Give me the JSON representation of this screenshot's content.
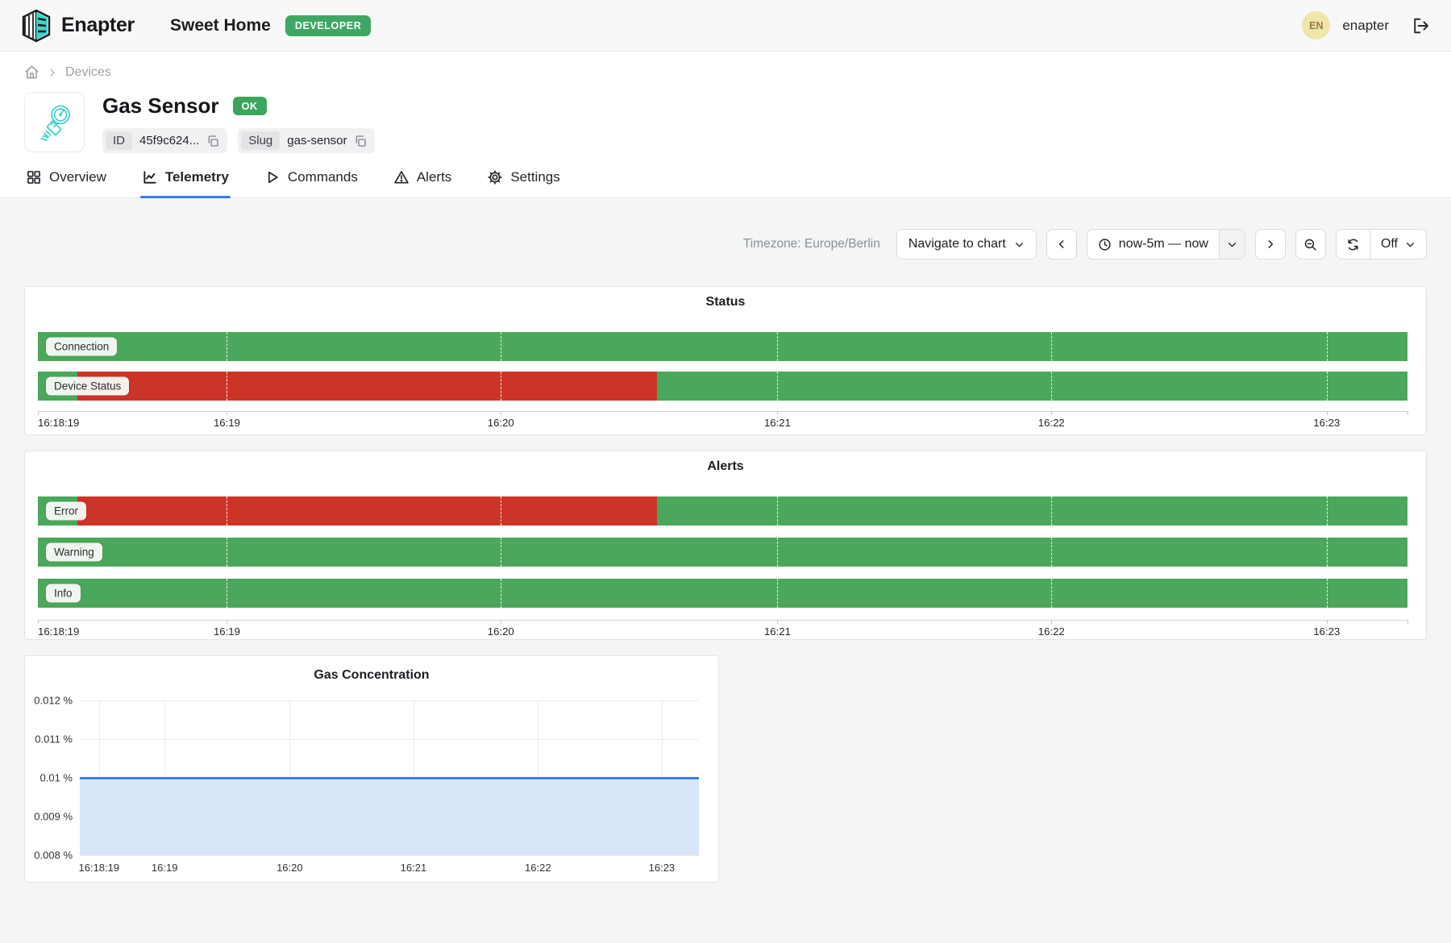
{
  "header": {
    "brand": "Enapter",
    "site_name": "Sweet Home",
    "role_badge": "DEVELOPER",
    "avatar_initials": "EN",
    "username": "enapter"
  },
  "breadcrumb": {
    "home_icon": "home-icon",
    "items": [
      "Devices"
    ]
  },
  "device": {
    "name": "Gas Sensor",
    "status_badge": "OK",
    "id_label": "ID",
    "id_value": "45f9c624...",
    "slug_label": "Slug",
    "slug_value": "gas-sensor"
  },
  "tabs": [
    {
      "label": "Overview",
      "icon": "grid-icon",
      "active": false
    },
    {
      "label": "Telemetry",
      "icon": "chart-line-icon",
      "active": true
    },
    {
      "label": "Commands",
      "icon": "play-icon",
      "active": false
    },
    {
      "label": "Alerts",
      "icon": "warning-triangle-icon",
      "active": false
    },
    {
      "label": "Settings",
      "icon": "gear-icon",
      "active": false
    }
  ],
  "toolbar": {
    "timezone_label": "Timezone: Europe/Berlin",
    "navigate_button": "Navigate to chart",
    "time_range": "now-5m — now",
    "auto_refresh": "Off"
  },
  "colors": {
    "ok": "#4aa75b",
    "error": "#cc3427",
    "line": "#3d7eea",
    "fill": "#d9e5f9",
    "badge_green": "#3ba55d",
    "active_tab": "#3b79e0"
  },
  "chart_data": [
    {
      "type": "timeline",
      "title": "Status",
      "striped": false,
      "time_range": [
        "16:18:19",
        "16:23:18"
      ],
      "rows": [
        {
          "label": "Connection",
          "segments": [
            {
              "state": "ok",
              "from": "16:18:19",
              "to": "16:23:18",
              "start_pct": 0,
              "end_pct": 100
            }
          ]
        },
        {
          "label": "Device Status",
          "segments": [
            {
              "state": "ok",
              "from": "16:18:19",
              "to": "16:18:28",
              "start_pct": 0,
              "end_pct": 2.9
            },
            {
              "state": "error",
              "from": "16:18:28",
              "to": "16:20:34",
              "start_pct": 2.9,
              "end_pct": 45.2
            },
            {
              "state": "ok",
              "from": "16:20:34",
              "to": "16:23:18",
              "start_pct": 45.2,
              "end_pct": 100
            }
          ]
        }
      ],
      "x_ticks": [
        {
          "label": "16:18:19",
          "pct": 0,
          "anchor": "start"
        },
        {
          "label": "16:19",
          "pct": 13.8
        },
        {
          "label": "16:20",
          "pct": 33.8
        },
        {
          "label": "16:21",
          "pct": 54.0
        },
        {
          "label": "16:22",
          "pct": 74.0
        },
        {
          "label": "16:23",
          "pct": 94.1
        }
      ]
    },
    {
      "type": "timeline",
      "title": "Alerts",
      "striped": true,
      "time_range": [
        "16:18:19",
        "16:23:18"
      ],
      "rows": [
        {
          "label": "Error",
          "segments": [
            {
              "state": "ok",
              "from": "16:18:19",
              "to": "16:18:28",
              "start_pct": 0,
              "end_pct": 2.9
            },
            {
              "state": "error",
              "from": "16:18:28",
              "to": "16:20:34",
              "start_pct": 2.9,
              "end_pct": 45.2
            },
            {
              "state": "ok",
              "from": "16:20:34",
              "to": "16:23:18",
              "start_pct": 45.2,
              "end_pct": 100
            }
          ]
        },
        {
          "label": "Warning",
          "segments": [
            {
              "state": "ok",
              "from": "16:18:19",
              "to": "16:23:18",
              "start_pct": 0,
              "end_pct": 100
            }
          ]
        },
        {
          "label": "Info",
          "segments": [
            {
              "state": "ok",
              "from": "16:18:19",
              "to": "16:23:18",
              "start_pct": 0,
              "end_pct": 100
            }
          ]
        }
      ],
      "x_ticks": [
        {
          "label": "16:18:19",
          "pct": 0,
          "anchor": "start"
        },
        {
          "label": "16:19",
          "pct": 13.8
        },
        {
          "label": "16:20",
          "pct": 33.8
        },
        {
          "label": "16:21",
          "pct": 54.0
        },
        {
          "label": "16:22",
          "pct": 74.0
        },
        {
          "label": "16:23",
          "pct": 94.1
        }
      ]
    },
    {
      "type": "line",
      "title": "Gas Concentration",
      "unit": "%",
      "ylim": [
        0.008,
        0.012
      ],
      "constant_value": 0.01,
      "series": [
        {
          "name": "Gas Concentration",
          "x": [
            "16:18:19",
            "16:23:18"
          ],
          "y": [
            0.01,
            0.01
          ]
        }
      ],
      "y_ticks": [
        {
          "label": "0.012 %",
          "pct": 0
        },
        {
          "label": "0.011 %",
          "pct": 25
        },
        {
          "label": "0.01 %",
          "pct": 50
        },
        {
          "label": "0.009 %",
          "pct": 75
        },
        {
          "label": "0.008 %",
          "pct": 100
        }
      ],
      "x_ticks": [
        {
          "label": "16:18:19",
          "pct": 3.1
        },
        {
          "label": "16:19",
          "pct": 13.7
        },
        {
          "label": "16:20",
          "pct": 33.9
        },
        {
          "label": "16:21",
          "pct": 53.9
        },
        {
          "label": "16:22",
          "pct": 74.0
        },
        {
          "label": "16:23",
          "pct": 94.0
        }
      ],
      "value_line_pct": 50
    }
  ]
}
